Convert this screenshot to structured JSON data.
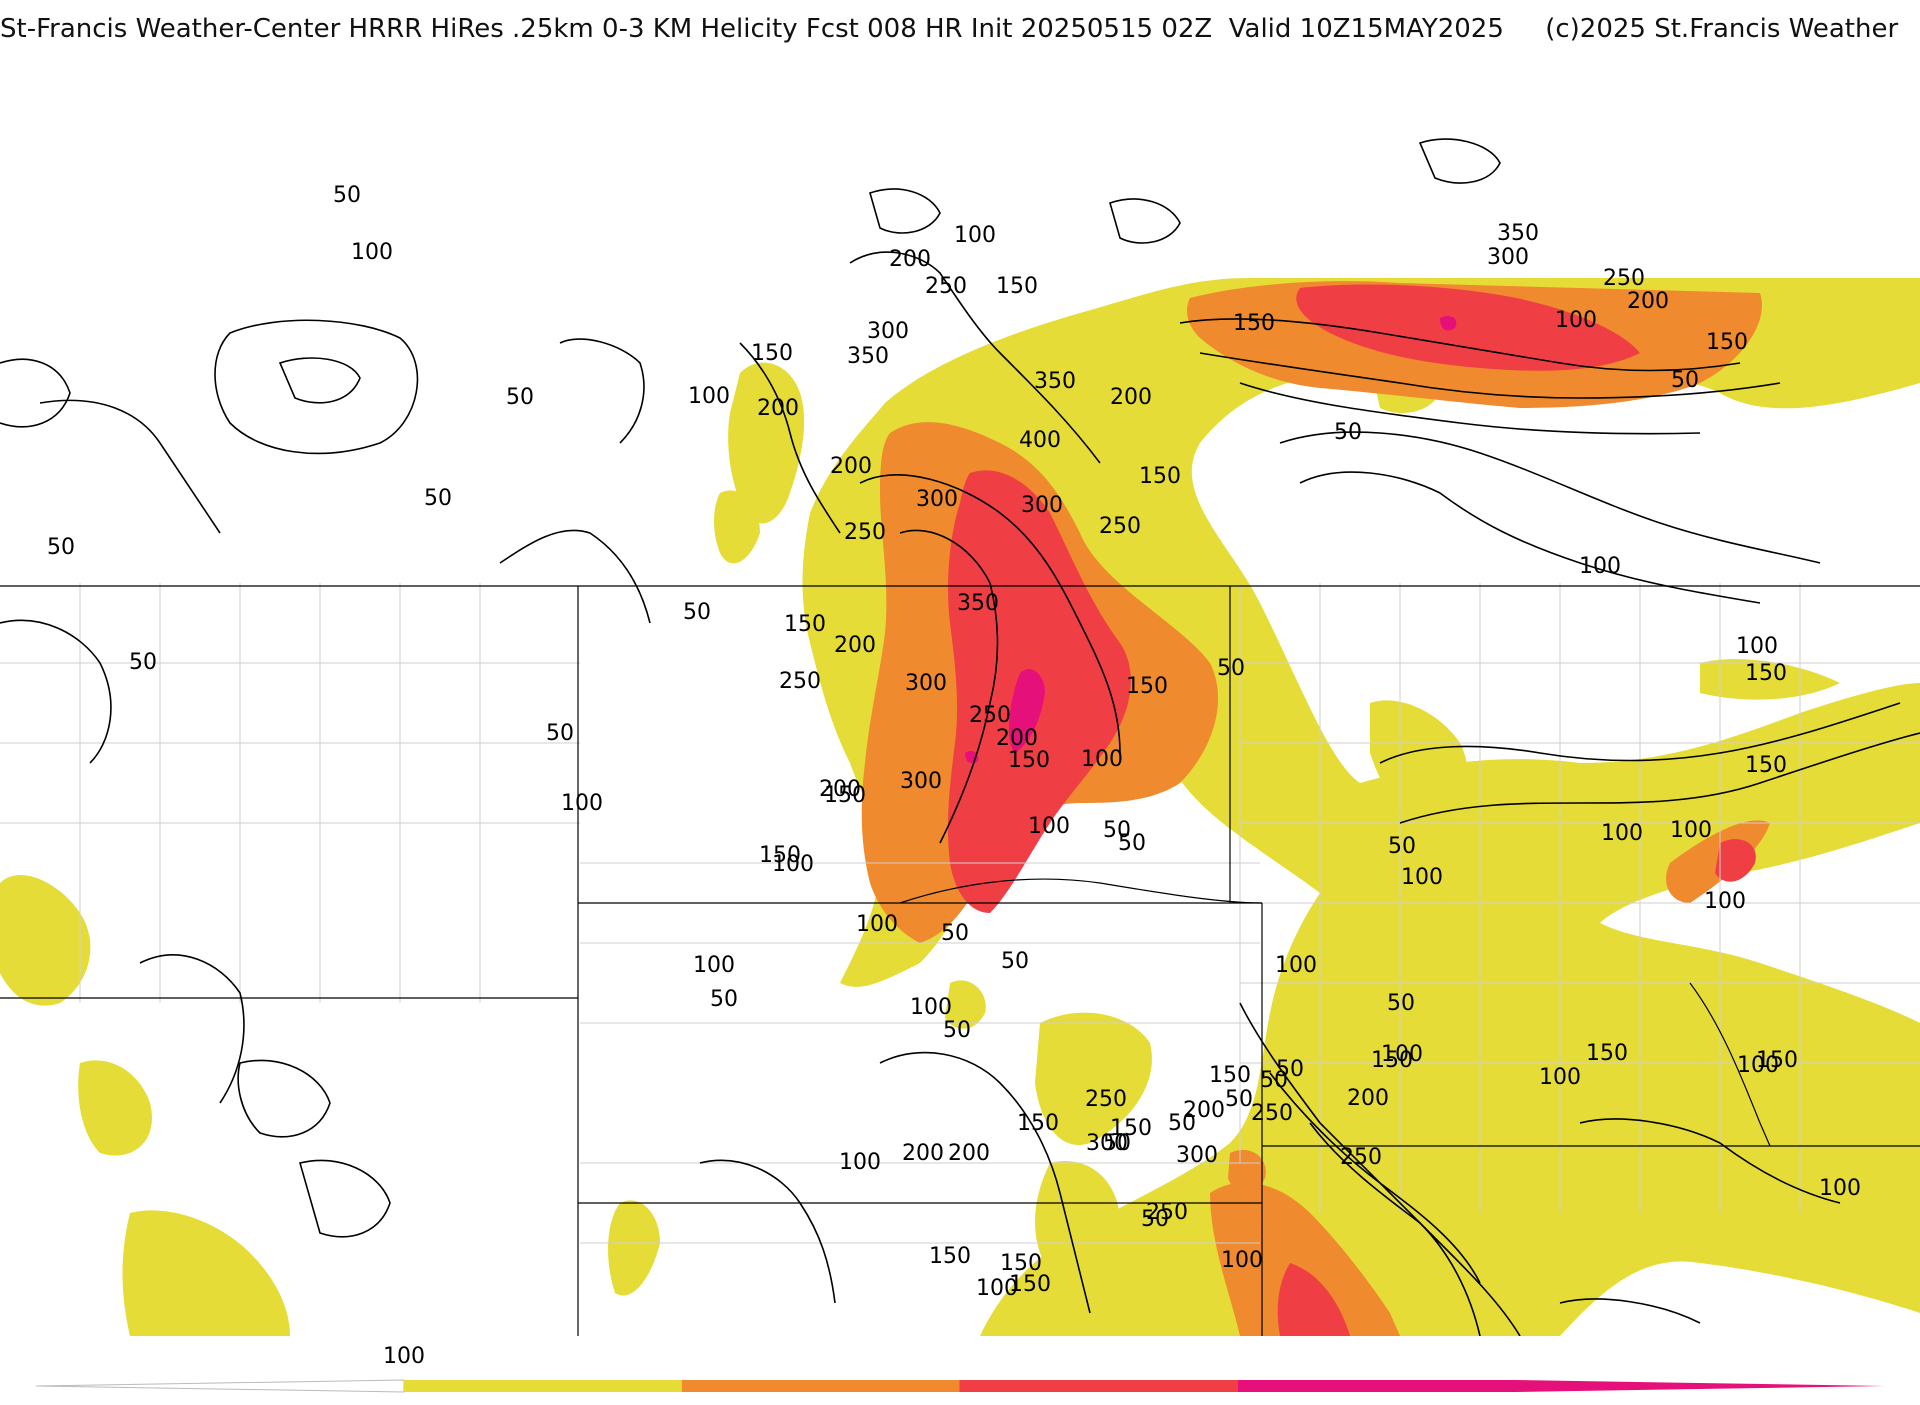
{
  "title": "St-Francis Weather-Center HRRR HiRes .25km 0-3 KM Helicity Fcst 008 HR Init 20250515 02Z  Valid 10Z15MAY2025     (c)2025 St.Francis Weather",
  "colors": {
    "c100": "#e5dc38",
    "c200": "#ef8a2e",
    "c300": "#ef3f45",
    "c400": "#e5107a",
    "border": "#000000",
    "county": "#cfcfcf"
  },
  "colorbar": {
    "tick_label": "100",
    "segments": [
      "#e5dc38",
      "#ef8a2e",
      "#ef3f45",
      "#e5107a"
    ]
  },
  "contour_labels": [
    {
      "t": "50"
    },
    {
      "t": "100"
    },
    {
      "t": "100"
    },
    {
      "t": "200"
    },
    {
      "t": "250"
    },
    {
      "t": "150"
    },
    {
      "t": "300"
    },
    {
      "t": "350"
    },
    {
      "t": "150"
    },
    {
      "t": "100"
    },
    {
      "t": "50"
    },
    {
      "t": "200"
    },
    {
      "t": "350"
    },
    {
      "t": "200"
    },
    {
      "t": "400"
    },
    {
      "t": "150"
    },
    {
      "t": "200"
    },
    {
      "t": "300"
    },
    {
      "t": "300"
    },
    {
      "t": "250"
    },
    {
      "t": "250"
    },
    {
      "t": "50"
    },
    {
      "t": "50"
    },
    {
      "t": "50"
    },
    {
      "t": "150"
    },
    {
      "t": "350"
    },
    {
      "t": "200"
    },
    {
      "t": "50"
    },
    {
      "t": "300"
    },
    {
      "t": "250"
    },
    {
      "t": "150"
    },
    {
      "t": "250"
    },
    {
      "t": "50"
    },
    {
      "t": "50"
    },
    {
      "t": "200"
    },
    {
      "t": "150"
    },
    {
      "t": "100"
    },
    {
      "t": "200"
    },
    {
      "t": "300"
    },
    {
      "t": "150"
    },
    {
      "t": "100"
    },
    {
      "t": "100"
    },
    {
      "t": "50"
    },
    {
      "t": "50"
    },
    {
      "t": "150"
    },
    {
      "t": "100"
    },
    {
      "t": "100"
    },
    {
      "t": "50"
    },
    {
      "t": "100"
    },
    {
      "t": "50"
    },
    {
      "t": "100"
    },
    {
      "t": "50"
    },
    {
      "t": "50"
    },
    {
      "t": "100"
    },
    {
      "t": "50"
    },
    {
      "t": "100"
    },
    {
      "t": "50"
    },
    {
      "t": "50"
    },
    {
      "t": "150"
    },
    {
      "t": "50"
    },
    {
      "t": "250"
    },
    {
      "t": "150"
    },
    {
      "t": "250"
    },
    {
      "t": "200"
    },
    {
      "t": "300"
    },
    {
      "t": "200"
    },
    {
      "t": "300"
    },
    {
      "t": "250"
    },
    {
      "t": "250"
    },
    {
      "t": "200"
    },
    {
      "t": "200"
    },
    {
      "t": "150"
    },
    {
      "t": "100"
    },
    {
      "t": "150"
    },
    {
      "t": "100"
    },
    {
      "t": "150"
    },
    {
      "t": "100"
    },
    {
      "t": "150"
    },
    {
      "t": "50"
    },
    {
      "t": "50"
    },
    {
      "t": "50"
    },
    {
      "t": "350"
    },
    {
      "t": "300"
    },
    {
      "t": "250"
    },
    {
      "t": "200"
    },
    {
      "t": "150"
    },
    {
      "t": "100"
    },
    {
      "t": "150"
    },
    {
      "t": "50"
    },
    {
      "t": "50"
    },
    {
      "t": "100"
    },
    {
      "t": "100"
    },
    {
      "t": "150"
    },
    {
      "t": "150"
    },
    {
      "t": "100"
    },
    {
      "t": "100"
    },
    {
      "t": "50"
    },
    {
      "t": "100"
    },
    {
      "t": "100"
    },
    {
      "t": "150"
    },
    {
      "t": "100"
    },
    {
      "t": "150"
    },
    {
      "t": "150"
    },
    {
      "t": "100"
    },
    {
      "t": "100"
    }
  ]
}
